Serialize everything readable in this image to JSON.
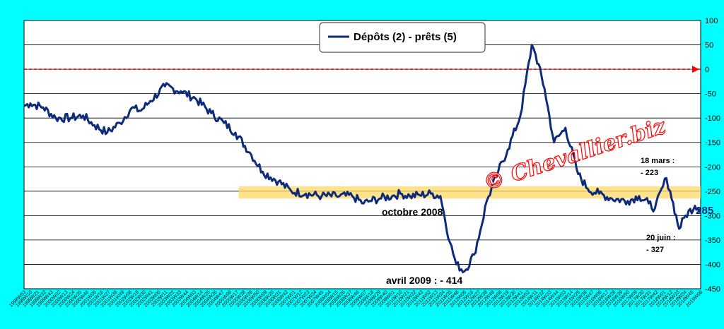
{
  "watermark": "© Chevallier.biz",
  "colors": {
    "background": "#00ffff",
    "plot_area": "#ffffff",
    "line": "#0e2a7a",
    "zero_line": "#ff0000",
    "band": "#ffd966"
  },
  "chart_data": {
    "type": "line",
    "ylim": [
      -450,
      100
    ],
    "yticks": [
      100,
      50,
      0,
      -50,
      -100,
      -150,
      -200,
      -250,
      -300,
      -350,
      -400,
      -450
    ],
    "grid": true,
    "legend_placement": "top-center",
    "series": [
      {
        "name": "Dépôts (2) - prêts (5)",
        "color": "#0e2a7a",
        "x": [
          "1998W53",
          "1999W10",
          "1999W30",
          "1999W50",
          "2000W20",
          "2000W40",
          "2001W05",
          "2001W25",
          "2001W45",
          "2002W10",
          "2002W25",
          "2002W40",
          "2003W10",
          "2003W35",
          "2004W05",
          "2004W30",
          "2004W50",
          "2005W15",
          "2005W40",
          "2006W05",
          "2006W30",
          "2006W50",
          "2007W20",
          "2007W45",
          "2008W15",
          "2008W40",
          "2009W05",
          "2009W15",
          "2009W30",
          "2009W50",
          "2010W10",
          "2010W25",
          "2010W40",
          "2011W05",
          "2011W20",
          "2011W35",
          "2011W45",
          "2012W05",
          "2012W20",
          "2012W30",
          "2012W40",
          "2013W05",
          "2013W20",
          "2013W40",
          "2014W05",
          "2014W11",
          "2014W25",
          "2014W40",
          "2015W05",
          "2015W25",
          "2015W40",
          "2016W05",
          "2016W25",
          "2016W50",
          "2017W15",
          "2017W30",
          "2017W40",
          "2018W05",
          "2018W11",
          "2018W25",
          "2018W35",
          "2018W50",
          "2019W06"
        ],
        "values": [
          -75,
          -70,
          -78,
          -100,
          -100,
          -95,
          -115,
          -130,
          -110,
          -80,
          -85,
          -65,
          -35,
          -45,
          -60,
          -90,
          -110,
          -130,
          -175,
          -210,
          -230,
          -250,
          -255,
          -260,
          -260,
          -260,
          -275,
          -270,
          -265,
          -260,
          -255,
          -260,
          -258,
          -255,
          -260,
          -355,
          -400,
          -414,
          -380,
          -330,
          -270,
          -210,
          -165,
          -95,
          50,
          30,
          -40,
          -150,
          -120,
          -215,
          -245,
          -255,
          -265,
          -270,
          -260,
          -275,
          -285,
          -223,
          -250,
          -327,
          -300,
          -280,
          -285
        ]
      }
    ],
    "band": [
      -240,
      -265
    ],
    "annotations": [
      {
        "label": "octobre 2008",
        "x": "2008W40",
        "y": -260
      },
      {
        "label": "avril 2009 : - 414",
        "x": "2012W05",
        "y": -414
      },
      {
        "line1": "18 mars :",
        "line2": "- 223",
        "x": "2018W11",
        "y": -223
      },
      {
        "line1": "20 juin :",
        "line2": "- 327",
        "x": "2018W25",
        "y": -327
      }
    ],
    "last_value_label": "- 285",
    "xtick_labels": [
      "1998W53",
      "1999W10",
      "1999W21",
      "1999W32",
      "1999W43",
      "2000W02",
      "2000W13",
      "2000W24",
      "2000W35",
      "2000W46",
      "2001W05",
      "2001W16",
      "2001W27",
      "2001W38",
      "2001W49",
      "2002W08",
      "2002W19",
      "2002W30",
      "2002W41",
      "2003W00",
      "2003W11",
      "2003W22",
      "2003W33",
      "2003W44",
      "2004W03",
      "2004W14",
      "2004W25",
      "2004W36",
      "2004W47",
      "2005W06",
      "2005W17",
      "2005W28",
      "2005W39",
      "2005W50",
      "2006W09",
      "2006W20",
      "2006W31",
      "2006W42",
      "2007W01",
      "2007W12",
      "2007W23",
      "2007W34",
      "2007W45",
      "2008W04",
      "2008W15",
      "2008W26",
      "2008W37",
      "2008W48",
      "2009W07",
      "2009W18",
      "2009W29",
      "2009W40",
      "2009W51",
      "2010W10",
      "2010W21",
      "2010W32",
      "2010W43",
      "2011W02",
      "2011W13",
      "2011W24",
      "2011W35",
      "2011W46",
      "2012W05",
      "2012W16",
      "2012W27",
      "2012W38",
      "2012W49",
      "2013W08",
      "2013W19",
      "2013W30",
      "2013W41",
      "2013W52",
      "2014W11",
      "2014W22",
      "2014W33",
      "2014W44",
      "2015W03",
      "2015W14",
      "2015W25",
      "2015W36",
      "2015W47",
      "2016W06",
      "2016W17",
      "2016W28",
      "2016W39",
      "2016W50",
      "2017W09",
      "2017W20",
      "2017W31",
      "2017W42",
      "2018W01",
      "2018W12",
      "2018W23",
      "2018W34",
      "2018W45",
      "2019W06"
    ]
  }
}
